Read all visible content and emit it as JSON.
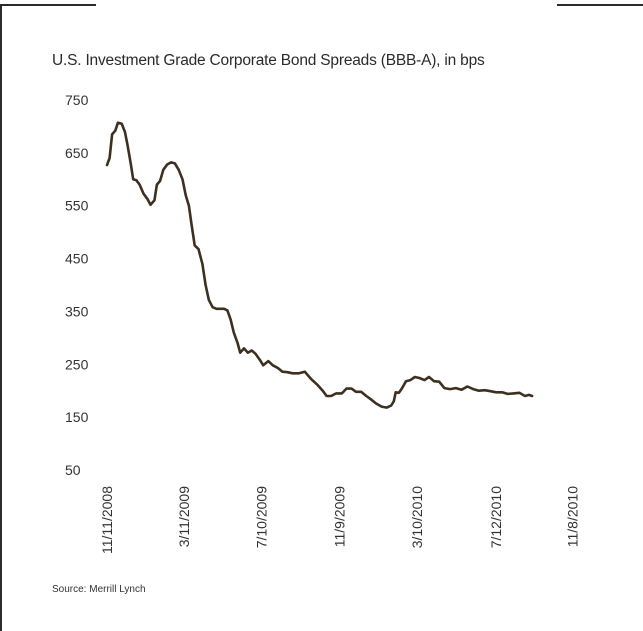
{
  "title": "U.S. Investment Grade Corporate Bond Spreads (BBB-A), in bps",
  "source": "Source: Merrill Lynch",
  "chart_data": {
    "type": "line",
    "title": "U.S. Investment Grade Corporate Bond Spreads (BBB-A), in bps",
    "xlabel": "",
    "ylabel": "",
    "ylim": [
      50,
      750
    ],
    "yticks": [
      750,
      650,
      550,
      450,
      350,
      250,
      150,
      50
    ],
    "xticks": [
      "11/11/2008",
      "3/11/2009",
      "7/10/2009",
      "11/9/2009",
      "3/10/2010",
      "7/12/2010",
      "11/8/2010"
    ],
    "xlim": [
      "2008-11-11",
      "2010-11-23"
    ],
    "grid": false,
    "line_color": "#3d3020",
    "series": [
      {
        "values": [
          [
            "2008-11-11",
            627
          ],
          [
            "2008-11-15",
            640
          ],
          [
            "2008-11-19",
            685
          ],
          [
            "2008-11-24",
            692
          ],
          [
            "2008-11-28",
            707
          ],
          [
            "2008-12-04",
            705
          ],
          [
            "2008-12-09",
            690
          ],
          [
            "2008-12-13",
            665
          ],
          [
            "2008-12-18",
            630
          ],
          [
            "2008-12-22",
            600
          ],
          [
            "2008-12-27",
            598
          ],
          [
            "2009-01-01",
            590
          ],
          [
            "2009-01-07",
            573
          ],
          [
            "2009-01-13",
            563
          ],
          [
            "2009-01-18",
            552
          ],
          [
            "2009-01-24",
            560
          ],
          [
            "2009-01-28",
            590
          ],
          [
            "2009-02-02",
            597
          ],
          [
            "2009-02-07",
            618
          ],
          [
            "2009-02-13",
            628
          ],
          [
            "2009-02-19",
            632
          ],
          [
            "2009-02-25",
            630
          ],
          [
            "2009-03-03",
            618
          ],
          [
            "2009-03-09",
            600
          ],
          [
            "2009-03-14",
            570
          ],
          [
            "2009-03-19",
            550
          ],
          [
            "2009-03-23",
            515
          ],
          [
            "2009-03-28",
            475
          ],
          [
            "2009-04-03",
            468
          ],
          [
            "2009-04-09",
            440
          ],
          [
            "2009-04-14",
            400
          ],
          [
            "2009-04-19",
            372
          ],
          [
            "2009-04-25",
            358
          ],
          [
            "2009-05-01",
            355
          ],
          [
            "2009-05-07",
            355
          ],
          [
            "2009-05-13",
            355
          ],
          [
            "2009-05-18",
            352
          ],
          [
            "2009-05-23",
            335
          ],
          [
            "2009-05-28",
            310
          ],
          [
            "2009-06-03",
            290
          ],
          [
            "2009-06-07",
            272
          ],
          [
            "2009-06-13",
            280
          ],
          [
            "2009-06-19",
            272
          ],
          [
            "2009-06-25",
            276
          ],
          [
            "2009-07-01",
            270
          ],
          [
            "2009-07-08",
            258
          ],
          [
            "2009-07-13",
            248
          ],
          [
            "2009-07-21",
            256
          ],
          [
            "2009-07-28",
            248
          ],
          [
            "2009-08-05",
            243
          ],
          [
            "2009-08-12",
            236
          ],
          [
            "2009-08-20",
            235
          ],
          [
            "2009-08-28",
            233
          ],
          [
            "2009-09-07",
            233
          ],
          [
            "2009-09-16",
            236
          ],
          [
            "2009-09-26",
            222
          ],
          [
            "2009-10-05",
            212
          ],
          [
            "2009-10-14",
            200
          ],
          [
            "2009-10-20",
            190
          ],
          [
            "2009-10-27",
            190
          ],
          [
            "2009-11-04",
            195
          ],
          [
            "2009-11-13",
            195
          ],
          [
            "2009-11-20",
            204
          ],
          [
            "2009-11-28",
            204
          ],
          [
            "2009-12-05",
            198
          ],
          [
            "2009-12-13",
            198
          ],
          [
            "2009-12-21",
            190
          ],
          [
            "2009-12-29",
            183
          ],
          [
            "2010-01-05",
            176
          ],
          [
            "2010-01-14",
            170
          ],
          [
            "2010-01-22",
            168
          ],
          [
            "2010-01-29",
            172
          ],
          [
            "2010-02-02",
            180
          ],
          [
            "2010-02-05",
            197
          ],
          [
            "2010-02-10",
            196
          ],
          [
            "2010-02-15",
            205
          ],
          [
            "2010-02-21",
            218
          ],
          [
            "2010-02-28",
            220
          ],
          [
            "2010-03-07",
            226
          ],
          [
            "2010-03-14",
            224
          ],
          [
            "2010-03-22",
            220
          ],
          [
            "2010-03-29",
            226
          ],
          [
            "2010-04-06",
            218
          ],
          [
            "2010-04-14",
            217
          ],
          [
            "2010-04-22",
            205
          ],
          [
            "2010-05-01",
            203
          ],
          [
            "2010-05-10",
            205
          ],
          [
            "2010-05-19",
            202
          ],
          [
            "2010-05-28",
            208
          ],
          [
            "2010-06-06",
            203
          ],
          [
            "2010-06-15",
            200
          ],
          [
            "2010-06-24",
            201
          ],
          [
            "2010-07-03",
            199
          ],
          [
            "2010-07-12",
            197
          ],
          [
            "2010-07-21",
            197
          ],
          [
            "2010-07-30",
            194
          ],
          [
            "2010-08-08",
            195
          ],
          [
            "2010-08-17",
            196
          ],
          [
            "2010-08-26",
            190
          ],
          [
            "2010-09-01",
            192
          ],
          [
            "2010-09-06",
            190
          ]
        ]
      }
    ]
  }
}
